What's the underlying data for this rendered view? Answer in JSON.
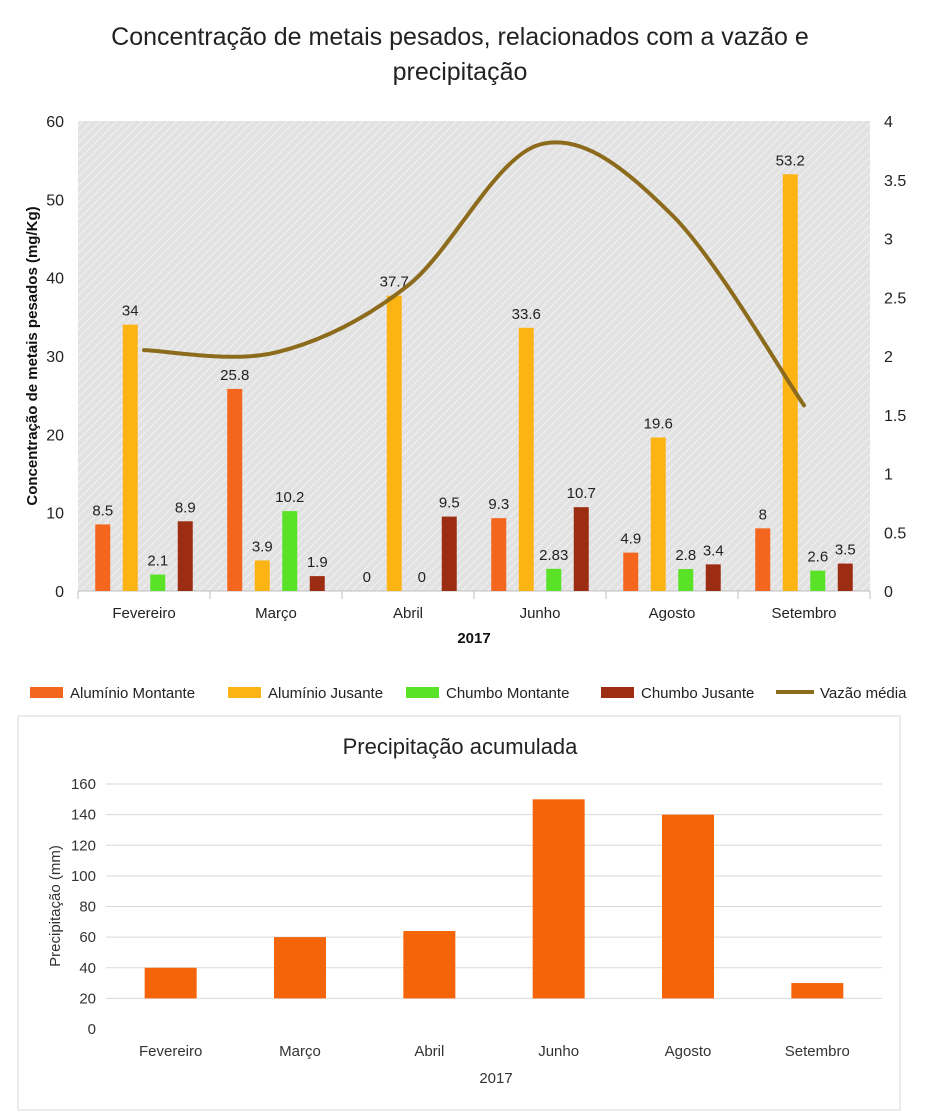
{
  "colors": {
    "aluminio_montante": "#f4651d",
    "aluminio_jusante": "#fbb413",
    "chumbo_montante": "#5ae227",
    "chumbo_jusante": "#9c2c12",
    "vazao": "#8c6b1c",
    "precip": "#f4650a"
  },
  "chart_data": [
    {
      "type": "bar",
      "title": "Concentração de metais pesados, relacionados com a vazão e precipitação",
      "title_lines": [
        "Concentração de metais pesados, relacionados com a vazão e",
        "precipitação"
      ],
      "xlabel": "2017",
      "ylabel": "Concentração de metais pesados (mg/Kg)",
      "ylim": [
        0,
        60
      ],
      "yticks": [
        "0",
        "10",
        "20",
        "30",
        "40",
        "50",
        "60"
      ],
      "y2lim": [
        0,
        4
      ],
      "y2ticks": [
        "0",
        "0.5",
        "1",
        "1.5",
        "2",
        "2.5",
        "3",
        "3.5",
        "4"
      ],
      "categories": [
        "Fevereiro",
        "Março",
        "Abril",
        "Junho",
        "Agosto",
        "Setembro"
      ],
      "series": [
        {
          "name": "Alumínio Montante",
          "type": "bar",
          "values": [
            8.5,
            25.8,
            0,
            9.3,
            4.9,
            8
          ],
          "labels": [
            "8.5",
            "25.8",
            "0",
            "9.3",
            "4.9",
            "8"
          ]
        },
        {
          "name": "Alumínio Jusante",
          "type": "bar",
          "values": [
            34,
            3.9,
            37.7,
            33.6,
            19.6,
            53.2
          ],
          "labels": [
            "34",
            "3.9",
            "37.7",
            "33.6",
            "19.6",
            "53.2"
          ]
        },
        {
          "name": "Chumbo Montante",
          "type": "bar",
          "values": [
            2.1,
            10.2,
            0,
            2.83,
            2.8,
            2.6
          ],
          "labels": [
            "2.1",
            "10.2",
            "0",
            "2.83",
            "2.8",
            "2.6"
          ]
        },
        {
          "name": "Chumbo Jusante",
          "type": "bar",
          "values": [
            8.9,
            1.9,
            9.5,
            10.7,
            3.4,
            3.5
          ],
          "labels": [
            "8.9",
            "1.9",
            "9.5",
            "10.7",
            "3.4",
            "3.5"
          ]
        },
        {
          "name": "Vazão média",
          "type": "line",
          "axis": "secondary",
          "values": [
            2.05,
            2.03,
            2.6,
            3.8,
            3.2,
            1.58
          ]
        }
      ],
      "legend": "bottom"
    },
    {
      "type": "bar",
      "title": "Precipitação acumulada",
      "xlabel": "2017",
      "ylabel": "Precipitação (mm)",
      "ylim": [
        0,
        160
      ],
      "yticks": [
        "0",
        "20",
        "40",
        "60",
        "80",
        "100",
        "120",
        "140",
        "160"
      ],
      "categories": [
        "Fevereiro",
        "Março",
        "Abril",
        "Junho",
        "Agosto",
        "Setembro"
      ],
      "values": [
        40,
        60,
        64,
        150,
        140,
        30
      ],
      "bar_baseline": 20,
      "grid": true
    }
  ]
}
